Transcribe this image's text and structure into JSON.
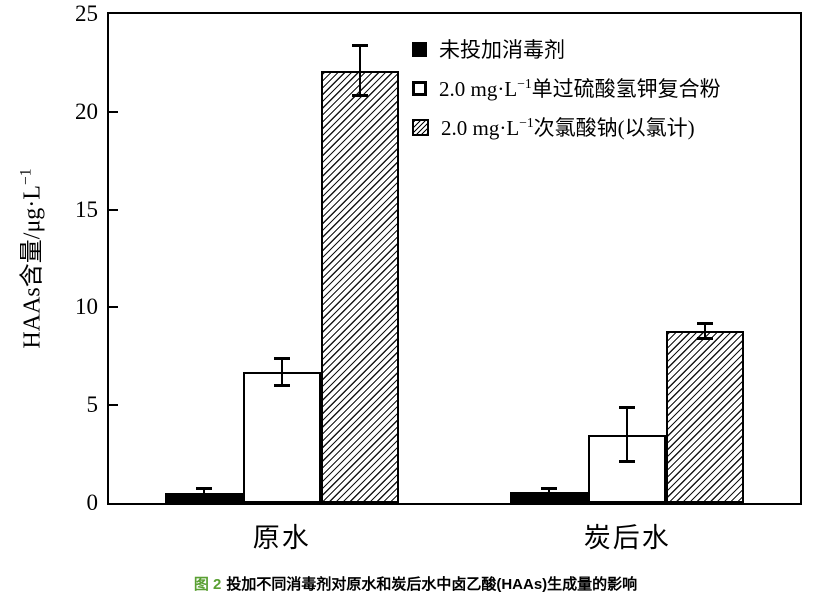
{
  "figure": {
    "caption_prefix": "图 2",
    "caption_text": "投加不同消毒剂对原水和炭后水中卤乙酸(HAAs)生成量的影响",
    "caption_prefix_color": "#5aa033"
  },
  "chart_data": {
    "type": "bar",
    "categories": [
      "原水",
      "炭后水"
    ],
    "series": [
      {
        "name": "未投加消毒剂",
        "name_pre": "未投加消毒剂",
        "name_sup": "",
        "name_post": "",
        "marker": "filled-square",
        "fill": "#000000",
        "values": [
          0.5,
          0.55
        ],
        "errors": [
          0.25,
          0.2
        ]
      },
      {
        "name": "2.0 mg·L⁻¹单过硫酸氢钾复合粉",
        "name_pre": "2.0 mg·L",
        "name_sup": "−1",
        "name_post": "单过硫酸氢钾复合粉",
        "marker": "open-square",
        "fill": "#ffffff",
        "values": [
          6.7,
          3.5
        ],
        "errors": [
          0.7,
          1.4
        ]
      },
      {
        "name": "2.0 mg·L⁻¹次氯酸钠(以氯计)",
        "name_pre": "2.0 mg·L",
        "name_sup": "−1",
        "name_post": "次氯酸钠(以氯计)",
        "marker": "hatched-square",
        "fill": "hatch-diagonal",
        "values": [
          22.1,
          8.8
        ],
        "errors": [
          1.3,
          0.4
        ]
      }
    ],
    "xlabel": "",
    "ylabel": "HAAs含量/μg·L⁻¹",
    "ylabel_pre": "HAAs含量/μg·L",
    "ylabel_sup": "−1",
    "ylim": [
      0,
      25
    ],
    "yticks": [
      0,
      5,
      10,
      15,
      20,
      25
    ],
    "grid": false,
    "legend_position": "inside-top-right",
    "error_bars": true,
    "axis_color": "#000000"
  }
}
